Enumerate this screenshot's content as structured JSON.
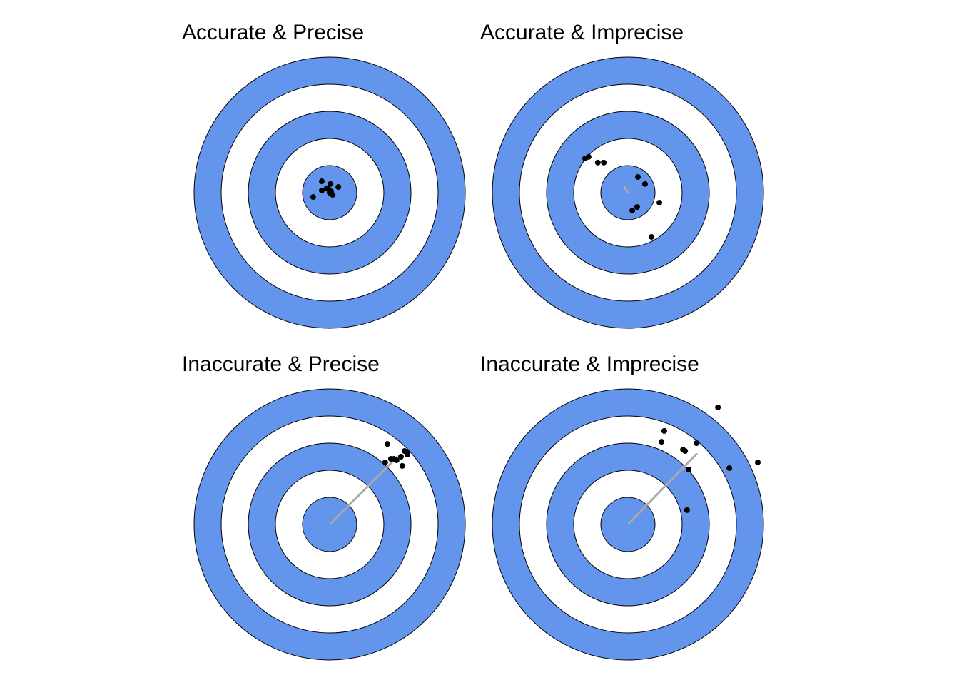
{
  "chart_data": [
    {
      "type": "scatter",
      "title": "Accurate & Precise",
      "x": [
        -0.29,
        0.03,
        -0.29,
        -0.11,
        0.32,
        0,
        0.11,
        0.05,
        -0.61,
        -0.05
      ],
      "y": [
        0.42,
        0.32,
        0.08,
        0.16,
        0.21,
        0,
        -0.08,
        0.05,
        -0.16,
        0.13
      ],
      "xlim": [
        -5,
        5
      ],
      "ylim": [
        -5,
        5
      ],
      "color": "#000000",
      "target_color": "#6495ED"
    },
    {
      "type": "scatter",
      "title": "Accurate & Imprecise",
      "x": [
        -1.58,
        -1.45,
        -1.11,
        -0.89,
        0.37,
        0.63,
        1.16,
        0.34,
        0.16,
        0.87
      ],
      "y": [
        1.26,
        1.32,
        1.11,
        1.11,
        0.58,
        0.32,
        -0.37,
        -0.53,
        -0.66,
        -1.63
      ],
      "xlim": [
        -5,
        5
      ],
      "ylim": [
        -5,
        5
      ],
      "color": "#000000",
      "target_color": "#6495ED"
    },
    {
      "type": "scatter",
      "title": "Inaccurate & Precise",
      "x": [
        2.13,
        2.76,
        2.87,
        2.63,
        2.26,
        2.37,
        2.05,
        2.68,
        2.47,
        2.84
      ],
      "y": [
        2.97,
        2.71,
        2.58,
        2.5,
        2.42,
        2.42,
        2.29,
        2.16,
        2.37,
        2.66
      ],
      "xlim": [
        -5,
        5
      ],
      "ylim": [
        -5,
        5
      ],
      "color": "#000000",
      "target_color": "#6495ED"
    },
    {
      "type": "scatter",
      "title": "Inaccurate & Imprecise",
      "x": [
        3.32,
        1.34,
        1.24,
        2.03,
        2.11,
        2.53,
        2.24,
        3.74,
        4.79,
        2.18
      ],
      "y": [
        4.32,
        3.45,
        3.05,
        2.76,
        2.71,
        3.0,
        2.03,
        2.08,
        2.29,
        0.53
      ],
      "xlim": [
        -5,
        5
      ],
      "ylim": [
        -5,
        5
      ],
      "color": "#000000",
      "target_color": "#6495ED"
    }
  ]
}
